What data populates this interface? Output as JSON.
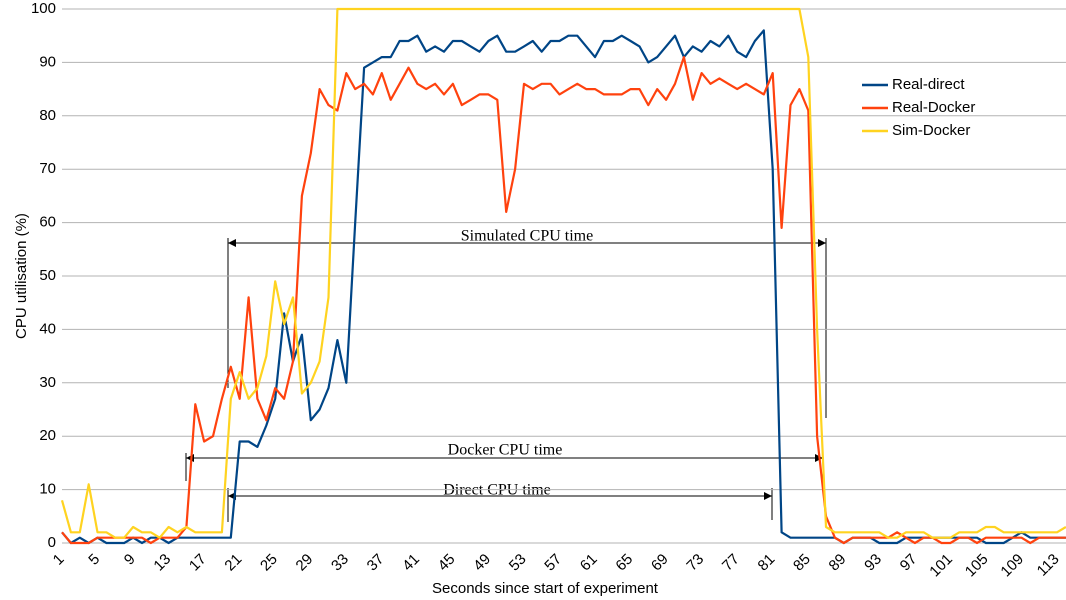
{
  "chart_data": {
    "type": "line",
    "xlabel": "Seconds since start of experiment",
    "ylabel": "CPU utilisation (%)",
    "categories": [
      1,
      null,
      null,
      null,
      5,
      null,
      null,
      null,
      9,
      null,
      null,
      null,
      13,
      null,
      null,
      null,
      17,
      null,
      null,
      null,
      21,
      null,
      null,
      null,
      25,
      null,
      null,
      null,
      29,
      null,
      null,
      null,
      33,
      null,
      null,
      null,
      37,
      null,
      null,
      null,
      41,
      null,
      null,
      null,
      45,
      null,
      null,
      null,
      49,
      null,
      null,
      null,
      53,
      null,
      null,
      null,
      57,
      null,
      null,
      null,
      61,
      null,
      null,
      null,
      65,
      null,
      null,
      null,
      69,
      null,
      null,
      null,
      73,
      null,
      null,
      null,
      77,
      null,
      null,
      null,
      81,
      null,
      null,
      null,
      85,
      null,
      null,
      null,
      89,
      null,
      null,
      null,
      93,
      null,
      null,
      null,
      97,
      null,
      null,
      null,
      101,
      null,
      null,
      null,
      105,
      null,
      null,
      null,
      109,
      null,
      null,
      null,
      113,
      null
    ],
    "ylim": [
      0,
      100
    ],
    "yticks": [
      0,
      10,
      20,
      30,
      40,
      50,
      60,
      70,
      80,
      90,
      100
    ],
    "grid": true,
    "legend": "right",
    "series": [
      {
        "name": "Real-direct",
        "color": "#004586",
        "values": [
          2,
          0,
          1,
          0,
          1,
          0,
          0,
          0,
          1,
          0,
          1,
          1,
          0,
          1,
          1,
          1,
          1,
          1,
          1,
          1,
          19,
          19,
          18,
          22,
          27,
          43,
          34,
          39,
          23,
          25,
          29,
          38,
          30,
          60,
          89,
          90,
          91,
          91,
          94,
          94,
          95,
          92,
          93,
          92,
          94,
          94,
          93,
          92,
          94,
          95,
          92,
          92,
          93,
          94,
          92,
          94,
          94,
          95,
          95,
          93,
          91,
          94,
          94,
          95,
          94,
          93,
          90,
          91,
          93,
          95,
          91,
          93,
          92,
          94,
          93,
          95,
          92,
          91,
          94,
          96,
          70,
          2,
          1,
          1,
          1,
          1,
          1,
          1,
          0,
          1,
          1,
          1,
          0,
          0,
          0,
          1,
          1,
          1,
          1,
          1,
          1,
          1,
          1,
          1,
          0,
          0,
          0,
          1,
          2,
          1,
          1,
          1,
          1,
          1
        ]
      },
      {
        "name": "Real-Docker",
        "color": "#ff420e",
        "values": [
          2,
          0,
          0,
          0,
          1,
          1,
          1,
          1,
          1,
          1,
          0,
          1,
          1,
          1,
          3,
          26,
          19,
          20,
          27,
          33,
          27,
          46,
          27,
          23,
          29,
          27,
          34,
          65,
          73,
          85,
          82,
          81,
          88,
          85,
          86,
          84,
          88,
          83,
          86,
          89,
          86,
          85,
          86,
          84,
          86,
          82,
          83,
          84,
          84,
          83,
          62,
          70,
          86,
          85,
          86,
          86,
          84,
          85,
          86,
          85,
          85,
          84,
          84,
          84,
          85,
          85,
          82,
          85,
          83,
          86,
          91,
          83,
          88,
          86,
          87,
          86,
          85,
          86,
          85,
          84,
          88,
          59,
          82,
          85,
          81,
          20,
          5,
          1,
          0,
          1,
          1,
          1,
          1,
          1,
          2,
          1,
          0,
          1,
          1,
          0,
          0,
          1,
          1,
          0,
          1,
          1,
          1,
          1,
          1,
          0,
          1,
          1,
          1,
          1
        ]
      },
      {
        "name": "Sim-Docker",
        "color": "#ffd320",
        "values": [
          8,
          2,
          2,
          11,
          2,
          2,
          1,
          1,
          3,
          2,
          2,
          1,
          3,
          2,
          3,
          2,
          2,
          2,
          2,
          27,
          32,
          27,
          29,
          35,
          49,
          41,
          46,
          28,
          30,
          34,
          46,
          100,
          100,
          100,
          100,
          100,
          100,
          100,
          100,
          100,
          100,
          100,
          100,
          100,
          100,
          100,
          100,
          100,
          100,
          100,
          100,
          100,
          100,
          100,
          100,
          100,
          100,
          100,
          100,
          100,
          100,
          100,
          100,
          100,
          100,
          100,
          100,
          100,
          100,
          100,
          100,
          100,
          100,
          100,
          100,
          100,
          100,
          100,
          100,
          100,
          100,
          100,
          100,
          100,
          91,
          40,
          3,
          2,
          2,
          2,
          2,
          2,
          2,
          1,
          1,
          2,
          2,
          2,
          1,
          1,
          1,
          2,
          2,
          2,
          3,
          3,
          2,
          2,
          2,
          2,
          2,
          2,
          2,
          3
        ]
      }
    ],
    "annotations": [
      "Simulated CPU time",
      "Docker CPU time",
      "Direct CPU time"
    ]
  }
}
